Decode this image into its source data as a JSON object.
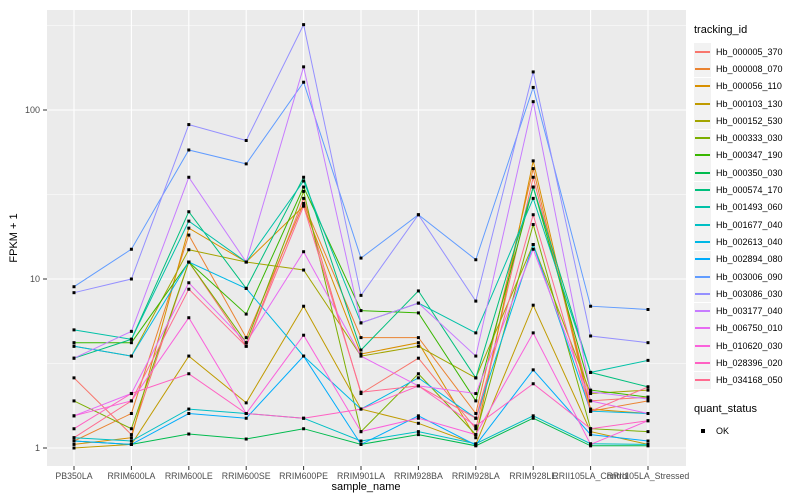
{
  "figure": {
    "background": "#FFFFFF",
    "panel_background": "#EBEBEB",
    "grid_color": "#FFFFFF",
    "tick_color": "#333333",
    "tick_label_color": "#4D4D4D",
    "point_color": "#000000"
  },
  "chart_data": {
    "type": "line",
    "title": "",
    "xlabel": "sample_name",
    "ylabel": "FPKM + 1",
    "y_scale": "log10",
    "ylim": [
      0.78,
      390
    ],
    "y_ticks": [
      1,
      10,
      100
    ],
    "y_tick_labels": [
      "1",
      "10",
      "100"
    ],
    "y_minor_breaks": [
      3.162,
      31.62,
      316.2
    ],
    "grid": "on",
    "legend_position": "right",
    "categories": [
      "PB350LA",
      "RRIM600LA",
      "RRIM600LE",
      "RRIM600SE",
      "RRIM600PE",
      "RRIM901LA",
      "RRIM928BA",
      "RRIM928LA",
      "RRIM928LE",
      "RRII105LA_Control",
      "RRII105LA_Stressed"
    ],
    "series": [
      {
        "name": "Hb_000005_370",
        "color": "#F8766D",
        "values": [
          2.6,
          1.2,
          12.6,
          4.0,
          30,
          2.1,
          3.4,
          1.3,
          40,
          1.9,
          2.0
        ]
      },
      {
        "name": "Hb_000008_070",
        "color": "#EA8331",
        "values": [
          1.1,
          1.6,
          18.2,
          4.5,
          28,
          4.5,
          4.5,
          1.6,
          45,
          1.65,
          1.9
        ]
      },
      {
        "name": "Hb_000056_110",
        "color": "#D89000",
        "values": [
          1.05,
          1.15,
          20,
          12.6,
          27,
          3.6,
          4.2,
          1.15,
          50,
          1.7,
          1.6
        ]
      },
      {
        "name": "Hb_000103_130",
        "color": "#C09B00",
        "values": [
          1.0,
          1.05,
          3.5,
          1.85,
          6.9,
          1.7,
          1.4,
          1.05,
          7.0,
          1.25,
          1.05
        ]
      },
      {
        "name": "Hb_000152_530",
        "color": "#A3A500",
        "values": [
          4.0,
          3.5,
          14.9,
          12.6,
          11.3,
          3.5,
          4.0,
          2.6,
          16,
          2.1,
          2.2
        ]
      },
      {
        "name": "Hb_000333_030",
        "color": "#7CAE00",
        "values": [
          1.9,
          1.3,
          12.6,
          4.2,
          33,
          1.25,
          2.75,
          1.2,
          21,
          1.3,
          1.25
        ]
      },
      {
        "name": "Hb_000347_190",
        "color": "#39B600",
        "values": [
          4.2,
          4.2,
          12.6,
          6.2,
          35,
          6.5,
          6.3,
          1.9,
          35,
          2.2,
          2.0
        ]
      },
      {
        "name": "Hb_000350_030",
        "color": "#00BB4E",
        "values": [
          1.1,
          1.05,
          1.21,
          1.13,
          1.3,
          1.05,
          1.2,
          1.03,
          1.5,
          1.03,
          1.03
        ]
      },
      {
        "name": "Hb_000574_170",
        "color": "#00BF7D",
        "values": [
          3.4,
          4.4,
          25,
          8.8,
          40,
          3.8,
          8.5,
          2.6,
          35,
          2.8,
          2.3
        ]
      },
      {
        "name": "Hb_001493_060",
        "color": "#00C1A7",
        "values": [
          5.0,
          4.4,
          22,
          12.6,
          38,
          5.5,
          7.2,
          4.8,
          30,
          2.8,
          3.3
        ]
      },
      {
        "name": "Hb_001677_040",
        "color": "#00BFC4",
        "values": [
          1.15,
          1.1,
          1.7,
          1.6,
          1.5,
          1.1,
          1.25,
          1.06,
          1.55,
          1.06,
          1.05
        ]
      },
      {
        "name": "Hb_002613_040",
        "color": "#00B8E5",
        "values": [
          4.0,
          3.5,
          12.6,
          8.8,
          3.5,
          1.7,
          2.6,
          1.5,
          16,
          1.65,
          1.6
        ]
      },
      {
        "name": "Hb_002894_080",
        "color": "#00ACFC",
        "values": [
          1.1,
          1.05,
          1.6,
          1.5,
          3.5,
          1.05,
          1.55,
          1.04,
          2.9,
          1.2,
          1.1
        ]
      },
      {
        "name": "Hb_003006_090",
        "color": "#619CFF",
        "values": [
          9.0,
          15,
          58,
          48,
          146,
          13.3,
          24,
          13,
          136,
          6.9,
          6.6
        ]
      },
      {
        "name": "Hb_003086_030",
        "color": "#9590FF",
        "values": [
          8.3,
          10,
          82,
          66,
          320,
          8.0,
          24,
          7.4,
          168,
          4.6,
          4.2
        ]
      },
      {
        "name": "Hb_003177_040",
        "color": "#C77CFF",
        "values": [
          3.4,
          4.9,
          40,
          12.6,
          180,
          5.5,
          7.2,
          3.5,
          112,
          2.15,
          1.95
        ]
      },
      {
        "name": "Hb_006750_010",
        "color": "#E76BF3",
        "values": [
          1.55,
          2.1,
          9.5,
          4.2,
          14.5,
          3.5,
          2.33,
          2.1,
          15,
          1.9,
          1.6
        ]
      },
      {
        "name": "Hb_010620_030",
        "color": "#FA62DB",
        "values": [
          1.55,
          1.9,
          5.9,
          1.6,
          4.65,
          1.25,
          1.5,
          1.2,
          4.8,
          1.05,
          1.45
        ]
      },
      {
        "name": "Hb_028396_020",
        "color": "#FF61C3",
        "values": [
          1.3,
          2.1,
          2.75,
          1.6,
          1.5,
          1.7,
          2.33,
          1.35,
          2.4,
          1.3,
          1.45
        ]
      },
      {
        "name": "Hb_034168_050",
        "color": "#FF6C90",
        "values": [
          1.15,
          1.9,
          8.7,
          4.0,
          27,
          2.14,
          2.33,
          1.5,
          24,
          1.65,
          2.3
        ]
      }
    ],
    "legend": {
      "color_title": "tracking_id",
      "shape_title": "quant_status",
      "shape_items": [
        {
          "label": "OK"
        }
      ]
    }
  }
}
